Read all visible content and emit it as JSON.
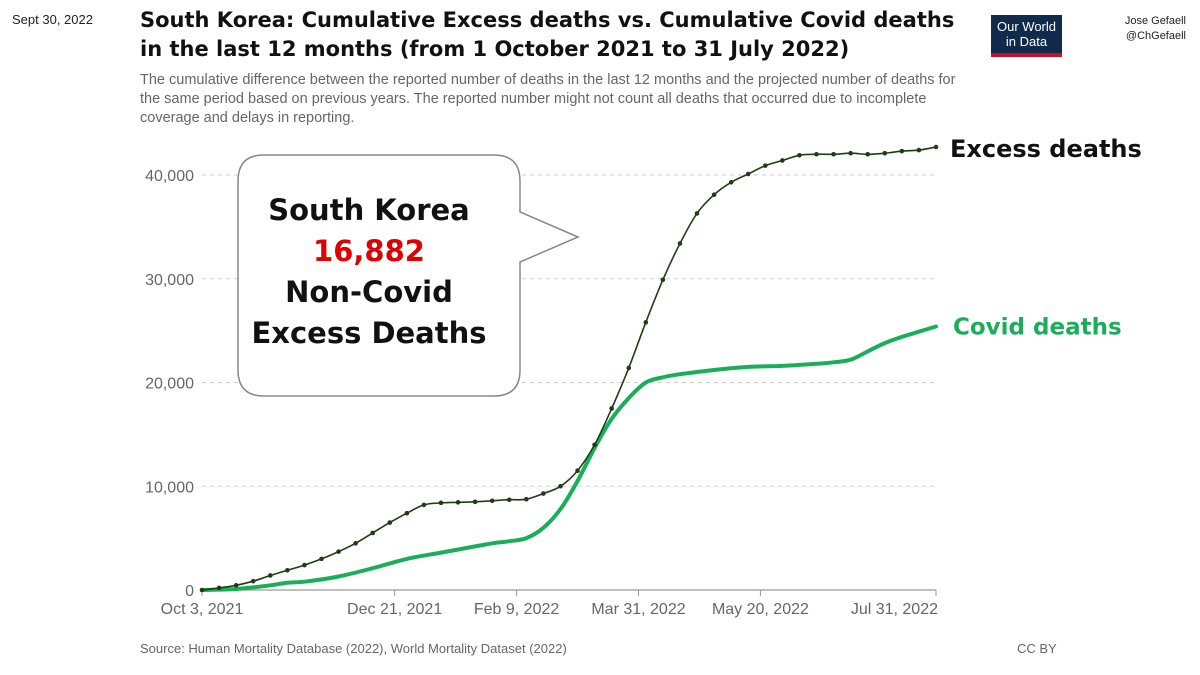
{
  "header": {
    "date": "Sept 30, 2022",
    "title_line1": "South Korea: Cumulative Excess deaths vs. Cumulative Covid deaths",
    "title_line2": "in the last 12 months (from 1 October 2021 to 31 July 2022)",
    "subtitle": "The cumulative difference between the reported number of deaths in the last 12 months and the projected number of deaths for the same period based on previous years. The reported number might not count all deaths that occurred due to incomplete coverage and delays in reporting.",
    "logo_line1": "Our World",
    "logo_line2": "in Data",
    "author_name": "Jose Gefaell",
    "author_handle": "@ChGefaell"
  },
  "callout": {
    "line1": "South Korea",
    "number": "16,882",
    "line2": "Non-Covid",
    "line3": "Excess Deaths"
  },
  "footer": {
    "source": "Source: Human Mortality Database (2022), World Mortality Dataset (2022)",
    "license": "CC BY"
  },
  "colors": {
    "excess": "#1e3d14",
    "covid": "#1bae5a",
    "grid": "#cfcfcf",
    "axis_text": "#666666",
    "callout_number": "#e00000"
  },
  "chart_data": {
    "type": "line",
    "title": "South Korea: Cumulative Excess deaths vs. Cumulative Covid deaths in the last 12 months (from 1 October 2021 to 31 July 2022)",
    "x_unit": "days since Oct 3, 2021",
    "xlim": [
      0,
      301
    ],
    "ylim": [
      0,
      43000
    ],
    "y_ticks": [
      0,
      10000,
      20000,
      30000,
      40000
    ],
    "y_tick_labels": [
      "0",
      "10,000",
      "20,000",
      "30,000",
      "40,000"
    ],
    "x_ticks": [
      0,
      79,
      129,
      179,
      229,
      301
    ],
    "x_tick_labels": [
      "Oct 3, 2021",
      "Dec 21, 2021",
      "Feb 9, 2022",
      "Mar 31, 2022",
      "May 20, 2022",
      "Jul 31, 2022"
    ],
    "grid": true,
    "series": [
      {
        "name": "Excess deaths",
        "label": "Excess deaths",
        "markers": true,
        "x": [
          0,
          7,
          14,
          21,
          28,
          35,
          42,
          49,
          56,
          63,
          70,
          77,
          84,
          91,
          98,
          105,
          112,
          119,
          126,
          133,
          140,
          147,
          154,
          161,
          168,
          175,
          182,
          189,
          196,
          203,
          210,
          217,
          224,
          231,
          238,
          245,
          252,
          259,
          266,
          273,
          280,
          287,
          294,
          301
        ],
        "values": [
          0,
          200,
          450,
          850,
          1400,
          1900,
          2400,
          3000,
          3700,
          4500,
          5500,
          6500,
          7400,
          8200,
          8400,
          8450,
          8500,
          8600,
          8700,
          8750,
          9300,
          10000,
          11500,
          14000,
          17500,
          21400,
          25800,
          29900,
          33400,
          36300,
          38100,
          39300,
          40100,
          40900,
          41400,
          41900,
          42000,
          42000,
          42100,
          42000,
          42100,
          42300,
          42400,
          42700
        ]
      },
      {
        "name": "Covid deaths",
        "label": "Covid deaths",
        "markers": false,
        "x": [
          0,
          14,
          28,
          35,
          42,
          56,
          70,
          84,
          98,
          112,
          119,
          126,
          133,
          140,
          147,
          154,
          161,
          168,
          175,
          182,
          189,
          196,
          210,
          224,
          238,
          252,
          259,
          266,
          273,
          280,
          287,
          294,
          301
        ],
        "values": [
          0,
          100,
          450,
          700,
          800,
          1300,
          2100,
          3000,
          3600,
          4200,
          4500,
          4700,
          5000,
          6000,
          7800,
          10500,
          13700,
          16500,
          18500,
          20000,
          20500,
          20800,
          21200,
          21500,
          21600,
          21800,
          21950,
          22200,
          23000,
          23800,
          24400,
          24900,
          25400
        ]
      }
    ]
  }
}
